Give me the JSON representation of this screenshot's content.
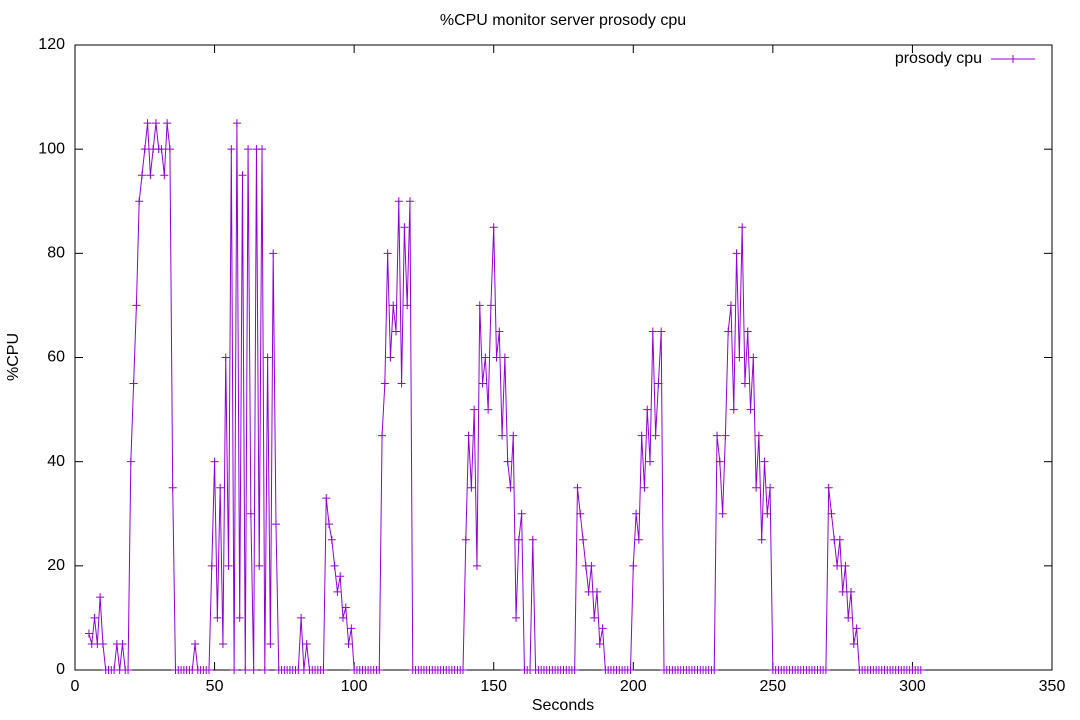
{
  "chart_data": {
    "type": "line",
    "title": "%CPU monitor server prosody cpu",
    "x_label": "Seconds",
    "y_label": "%CPU",
    "x": [
      5,
      6,
      7,
      8,
      9,
      10,
      11,
      12,
      13,
      14,
      15,
      16,
      17,
      18,
      19,
      20,
      21,
      22,
      23,
      24,
      25,
      26,
      27,
      28,
      29,
      30,
      31,
      32,
      33,
      34,
      35,
      36,
      37,
      38,
      39,
      40,
      41,
      42,
      43,
      44,
      45,
      46,
      47,
      48,
      49,
      50,
      51,
      52,
      53,
      54,
      55,
      56,
      57,
      58,
      59,
      60,
      61,
      62,
      63,
      64,
      65,
      66,
      67,
      68,
      69,
      70,
      71,
      72,
      73,
      74,
      75,
      76,
      77,
      78,
      79,
      80,
      81,
      82,
      83,
      84,
      85,
      86,
      87,
      88,
      89,
      90,
      91,
      92,
      93,
      94,
      95,
      96,
      97,
      98,
      99,
      100,
      101,
      102,
      103,
      104,
      105,
      106,
      107,
      108,
      109,
      110,
      111,
      112,
      113,
      114,
      115,
      116,
      117,
      118,
      119,
      120,
      121,
      122,
      123,
      124,
      125,
      126,
      127,
      128,
      129,
      130,
      131,
      132,
      133,
      134,
      135,
      136,
      137,
      138,
      139,
      140,
      141,
      142,
      143,
      144,
      145,
      146,
      147,
      148,
      149,
      150,
      151,
      152,
      153,
      154,
      155,
      156,
      157,
      158,
      159,
      160,
      161,
      162,
      163,
      164,
      165,
      166,
      167,
      168,
      169,
      170,
      171,
      172,
      173,
      174,
      175,
      176,
      177,
      178,
      179,
      180,
      181,
      182,
      183,
      184,
      185,
      186,
      187,
      188,
      189,
      190,
      191,
      192,
      193,
      194,
      195,
      196,
      197,
      198,
      199,
      200,
      201,
      202,
      203,
      204,
      205,
      206,
      207,
      208,
      209,
      210,
      211,
      212,
      213,
      214,
      215,
      216,
      217,
      218,
      219,
      220,
      221,
      222,
      223,
      224,
      225,
      226,
      227,
      228,
      229,
      230,
      231,
      232,
      233,
      234,
      235,
      236,
      237,
      238,
      239,
      240,
      241,
      242,
      243,
      244,
      245,
      246,
      247,
      248,
      249,
      250,
      251,
      252,
      253,
      254,
      255,
      256,
      257,
      258,
      259,
      260,
      261,
      262,
      263,
      264,
      265,
      266,
      267,
      268,
      269,
      270,
      271,
      272,
      273,
      274,
      275,
      276,
      277,
      278,
      279,
      280,
      281,
      282,
      283,
      284,
      285,
      286,
      287,
      288,
      289,
      290,
      291,
      292,
      293,
      294,
      295,
      296,
      297,
      298,
      299,
      300,
      301,
      302,
      303
    ],
    "series": [
      {
        "name": "prosody cpu",
        "color": "#9400d3",
        "values": [
          7,
          5,
          10,
          5,
          14,
          5,
          0,
          0,
          0,
          0,
          5,
          0,
          5,
          0,
          0,
          40,
          55,
          70,
          90,
          95,
          100,
          105,
          95,
          100,
          105,
          100,
          100,
          95,
          105,
          100,
          35,
          0,
          0,
          0,
          0,
          0,
          0,
          0,
          5,
          0,
          0,
          0,
          0,
          0,
          20,
          40,
          10,
          35,
          5,
          60,
          20,
          100,
          0,
          105,
          10,
          95,
          0,
          100,
          30,
          0,
          100,
          20,
          100,
          0,
          60,
          5,
          80,
          28,
          0,
          0,
          0,
          0,
          0,
          0,
          0,
          0,
          10,
          0,
          5,
          0,
          0,
          0,
          0,
          0,
          0,
          33,
          28,
          25,
          20,
          15,
          18,
          10,
          12,
          5,
          8,
          0,
          0,
          0,
          0,
          0,
          0,
          0,
          0,
          0,
          0,
          45,
          55,
          80,
          60,
          70,
          65,
          90,
          55,
          85,
          70,
          90,
          0,
          0,
          0,
          0,
          0,
          0,
          0,
          0,
          0,
          0,
          0,
          0,
          0,
          0,
          0,
          0,
          0,
          0,
          0,
          25,
          45,
          35,
          50,
          20,
          70,
          55,
          60,
          50,
          70,
          85,
          60,
          65,
          45,
          60,
          40,
          35,
          45,
          10,
          25,
          30,
          0,
          0,
          0,
          25,
          0,
          0,
          0,
          0,
          0,
          0,
          0,
          0,
          0,
          0,
          0,
          0,
          0,
          0,
          0,
          35,
          30,
          25,
          20,
          15,
          20,
          10,
          15,
          5,
          8,
          0,
          0,
          0,
          0,
          0,
          0,
          0,
          0,
          0,
          0,
          20,
          30,
          25,
          45,
          35,
          50,
          40,
          65,
          45,
          55,
          65,
          0,
          0,
          0,
          0,
          0,
          0,
          0,
          0,
          0,
          0,
          0,
          0,
          0,
          0,
          0,
          0,
          0,
          0,
          0,
          45,
          40,
          30,
          45,
          65,
          70,
          50,
          80,
          60,
          85,
          55,
          65,
          50,
          60,
          35,
          45,
          25,
          40,
          30,
          35,
          0,
          0,
          0,
          0,
          0,
          0,
          0,
          0,
          0,
          0,
          0,
          0,
          0,
          0,
          0,
          0,
          0,
          0,
          0,
          0,
          35,
          30,
          25,
          20,
          25,
          15,
          20,
          10,
          15,
          5,
          8,
          0,
          0,
          0,
          0,
          0,
          0,
          0,
          0,
          0,
          0,
          0,
          0,
          0,
          0,
          0,
          0,
          0,
          0,
          0,
          0,
          0,
          0,
          0
        ]
      }
    ],
    "xlim": [
      0,
      350
    ],
    "xticks": [
      0,
      50,
      100,
      150,
      200,
      250,
      300,
      350
    ],
    "ylim": [
      0,
      120
    ],
    "yticks": [
      0,
      20,
      40,
      60,
      80,
      100,
      120
    ],
    "grid": false,
    "legend": "top-right"
  }
}
